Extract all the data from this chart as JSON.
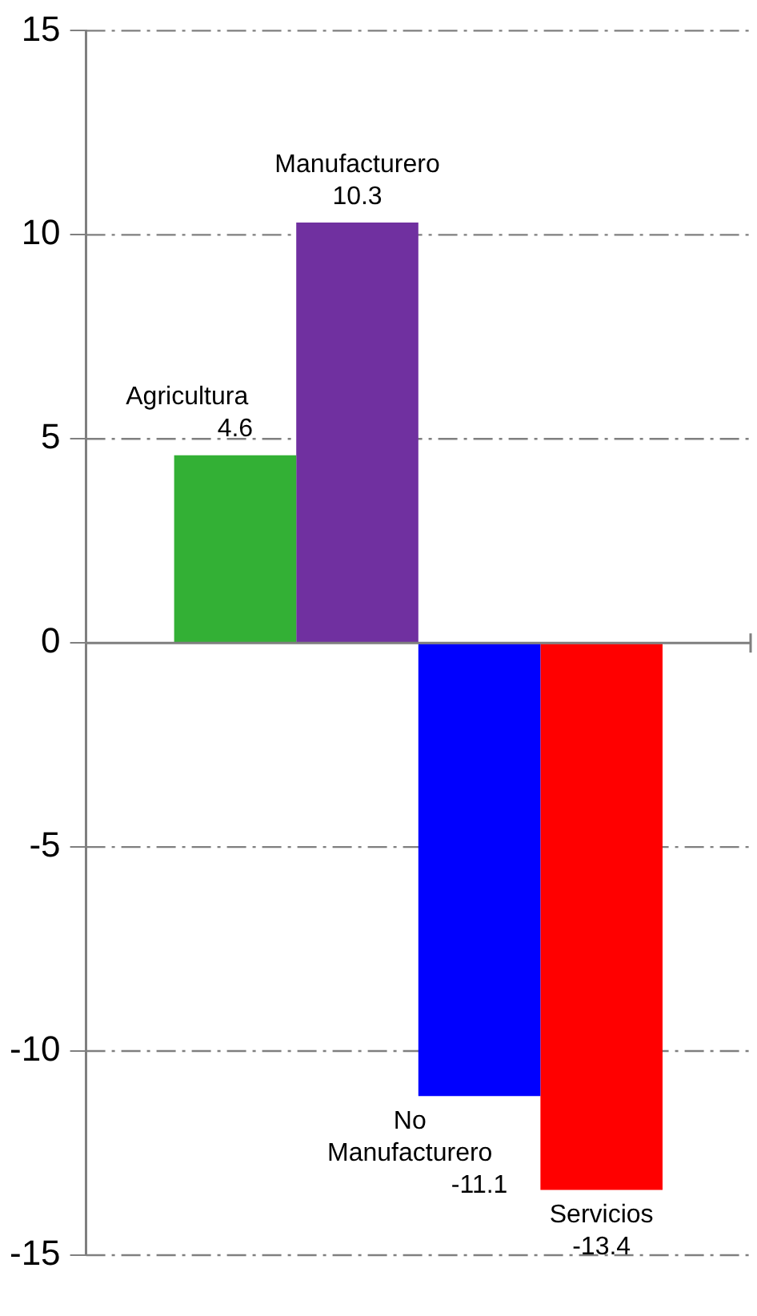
{
  "chart_data": {
    "type": "bar",
    "categories": [
      null
    ],
    "series": [
      {
        "name": "Agricultura",
        "color": "#33b035",
        "values": [
          4.6
        ]
      },
      {
        "name": "Manufacturero",
        "color": "#7030a0",
        "values": [
          10.3
        ]
      },
      {
        "name": "No Manufacturero",
        "color": "#0000ff",
        "values": [
          -11.1
        ]
      },
      {
        "name": "Servicios",
        "color": "#ff0000",
        "values": [
          -13.4
        ]
      }
    ],
    "ylim": [
      -15,
      15
    ],
    "yticks": [
      -15,
      -10,
      -5,
      0,
      5,
      10,
      15
    ],
    "grid": "y",
    "data_labels": true
  }
}
